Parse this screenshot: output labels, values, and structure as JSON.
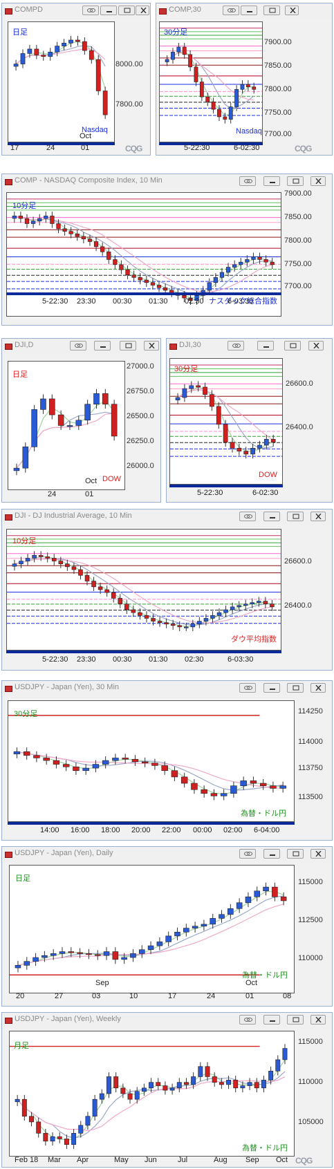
{
  "windows": [
    {
      "key": "compd",
      "title": "COMPD",
      "period_label": "日足",
      "instrument_label": "Nasdaq",
      "yticks": [
        "8000.00",
        "7800.00"
      ],
      "xticks": [
        "17",
        "24",
        "01"
      ],
      "xtick2": "Oct",
      "logo": "CQG"
    },
    {
      "key": "comp30",
      "title": "COMP,30",
      "period_label": "30分足",
      "instrument_label": "Nasdaq",
      "yticks": [
        "7900.00",
        "7850.00",
        "7800.00",
        "7750.00",
        "7700.00"
      ],
      "xticks": [
        "5-22:30",
        "6-02:30"
      ],
      "logo": "CQG"
    },
    {
      "key": "comp10",
      "title": "COMP - NASDAQ Composite Index, 10 Min",
      "period_label": "10分足",
      "instrument_label": "ナスダック総合指数",
      "yticks": [
        "7900.00",
        "7850.00",
        "7800.00",
        "7750.00",
        "7700.00"
      ],
      "xticks": [
        "5-22:30",
        "23:30",
        "00:30",
        "01:30",
        "02:30",
        "6-03:30"
      ]
    },
    {
      "key": "djid",
      "title": "DJI,D",
      "period_label": "日足",
      "instrument_label": "DOW",
      "yticks": [
        "27000.0",
        "26750.0",
        "26500.0",
        "26250.0",
        "26000.0"
      ],
      "xticks": [
        "24",
        "01"
      ],
      "xtick2": "Oct"
    },
    {
      "key": "dji30",
      "title": "DJI,30",
      "period_label": "30分足",
      "instrument_label": "DOW",
      "yticks": [
        "26600.0",
        "26400.0"
      ],
      "xticks": [
        "5-22:30",
        "6-02:30"
      ]
    },
    {
      "key": "dji10",
      "title": "DJI - DJ Industrial Average, 10 Min",
      "period_label": "10分足",
      "instrument_label": "ダウ平均指数",
      "yticks": [
        "26600.0",
        "26400.0"
      ],
      "xticks": [
        "5-22:30",
        "23:30",
        "00:30",
        "01:30",
        "02:30",
        "6-03:30"
      ]
    },
    {
      "key": "usd30",
      "title": "USDJPY - Japan (Yen), 30 Min",
      "period_label": "30分足",
      "instrument_label": "為替・ドル円",
      "yticks": [
        "114250",
        "114000",
        "113750",
        "113500"
      ],
      "xticks": [
        "14:00",
        "16:00",
        "18:00",
        "20:00",
        "22:00",
        "00:00",
        "02:00",
        "6-04:00"
      ]
    },
    {
      "key": "usdd",
      "title": "USDJPY - Japan (Yen), Daily",
      "period_label": "日足",
      "instrument_label": "為替・ドル円",
      "yticks": [
        "115000",
        "112500",
        "110000"
      ],
      "xticks": [
        "20",
        "27",
        "03",
        "10",
        "17",
        "24",
        "01",
        "08"
      ],
      "month_labels": [
        "Sep",
        "Oct"
      ]
    },
    {
      "key": "usdw",
      "title": "USDJPY - Japan (Yen), Weekly",
      "period_label": "月足",
      "instrument_label": "為替・ドル円",
      "yticks": [
        "115000",
        "110000",
        "105000"
      ],
      "xticks": [
        "Feb 18",
        "Mar",
        "Apr",
        "May",
        "Jun",
        "Jul",
        "Aug",
        "Sep",
        "Oct"
      ],
      "logo": "CQG"
    }
  ],
  "colors": {
    "up": "#2a5bd6",
    "down": "#d02020",
    "label_blue": "#1a2ee0",
    "label_red": "#e02020",
    "label_green": "#209020",
    "axis_bar": "#0d2a9a"
  },
  "chart_data": [
    {
      "type": "candlestick",
      "name": "COMPD daily",
      "ylim": [
        7700,
        8100
      ],
      "closes": [
        7960,
        7995,
        8010,
        7990,
        7985,
        8000,
        8020,
        8030,
        8040,
        8035,
        8005,
        7975,
        7870,
        7790
      ]
    },
    {
      "type": "candlestick",
      "name": "COMP 30 min",
      "ylim": [
        7690,
        7930
      ],
      "closes": [
        7855,
        7870,
        7880,
        7865,
        7840,
        7810,
        7780,
        7770,
        7755,
        7740,
        7735,
        7760,
        7795,
        7805,
        7800,
        7795
      ]
    },
    {
      "type": "candlestick",
      "name": "COMP 10 min",
      "ylim": [
        7690,
        7930
      ],
      "closes": [
        7885,
        7880,
        7870,
        7875,
        7880,
        7885,
        7870,
        7860,
        7855,
        7850,
        7845,
        7840,
        7835,
        7825,
        7815,
        7800,
        7790,
        7780,
        7770,
        7765,
        7760,
        7755,
        7750,
        7745,
        7740,
        7735,
        7730,
        7725,
        7720,
        7730,
        7740,
        7755,
        7765,
        7775,
        7785,
        7790,
        7795,
        7800,
        7805,
        7800,
        7795,
        7790
      ]
    },
    {
      "type": "candlestick",
      "name": "DJI daily",
      "ylim": [
        25900,
        27100
      ],
      "closes": [
        26100,
        26300,
        26650,
        26750,
        26600,
        26500,
        26500,
        26550,
        26700,
        26800,
        26700,
        26400
      ]
    },
    {
      "type": "candlestick",
      "name": "DJI 30 min",
      "ylim": [
        26300,
        26720
      ],
      "closes": [
        26590,
        26620,
        26630,
        26625,
        26600,
        26560,
        26500,
        26440,
        26420,
        26410,
        26400,
        26420,
        26430,
        26450,
        26440
      ]
    },
    {
      "type": "candlestick",
      "name": "DJI 10 min",
      "ylim": [
        26300,
        26720
      ],
      "closes": [
        26600,
        26610,
        26620,
        26630,
        26625,
        26620,
        26610,
        26600,
        26590,
        26580,
        26560,
        26540,
        26520,
        26510,
        26500,
        26480,
        26460,
        26440,
        26430,
        26420,
        26410,
        26400,
        26395,
        26390,
        26385,
        26380,
        26380,
        26390,
        26400,
        26410,
        26420,
        26430,
        26440,
        26450,
        26455,
        26460,
        26465,
        26470,
        26460,
        26450
      ]
    },
    {
      "type": "candlestick",
      "name": "USDJPY 30 min",
      "ylim": [
        113400,
        114350
      ],
      "closes": [
        113950,
        113920,
        113900,
        113880,
        113850,
        113830,
        113800,
        113820,
        113850,
        113880,
        113900,
        113890,
        113870,
        113860,
        113840,
        113800,
        113750,
        113700,
        113650,
        113620,
        113600,
        113620,
        113680,
        113720,
        113700,
        113680,
        113660,
        113680
      ]
    },
    {
      "type": "candlestick",
      "name": "USDJPY daily",
      "ylim": [
        109000,
        115500
      ],
      "closes": [
        110400,
        110600,
        110800,
        110900,
        111000,
        111100,
        111050,
        111000,
        110950,
        110900,
        111100,
        110700,
        110800,
        111000,
        111200,
        111400,
        111600,
        111900,
        112100,
        112300,
        112400,
        112500,
        112800,
        113000,
        113300,
        113600,
        113900,
        114200,
        114400,
        113900,
        113700
      ]
    },
    {
      "type": "candlestick",
      "name": "USDJPY weekly",
      "ylim": [
        104500,
        115500
      ],
      "closes": [
        109500,
        108000,
        107500,
        106500,
        105800,
        106200,
        106000,
        105500,
        106500,
        107200,
        108000,
        109500,
        110000,
        111500,
        110500,
        110000,
        109500,
        110200,
        110500,
        111000,
        110700,
        110300,
        110500,
        111000,
        110800,
        111500,
        112400,
        111500,
        111000,
        110800,
        111200,
        110500,
        110700,
        111000,
        110500,
        111200,
        112000,
        113000,
        114000
      ]
    }
  ]
}
